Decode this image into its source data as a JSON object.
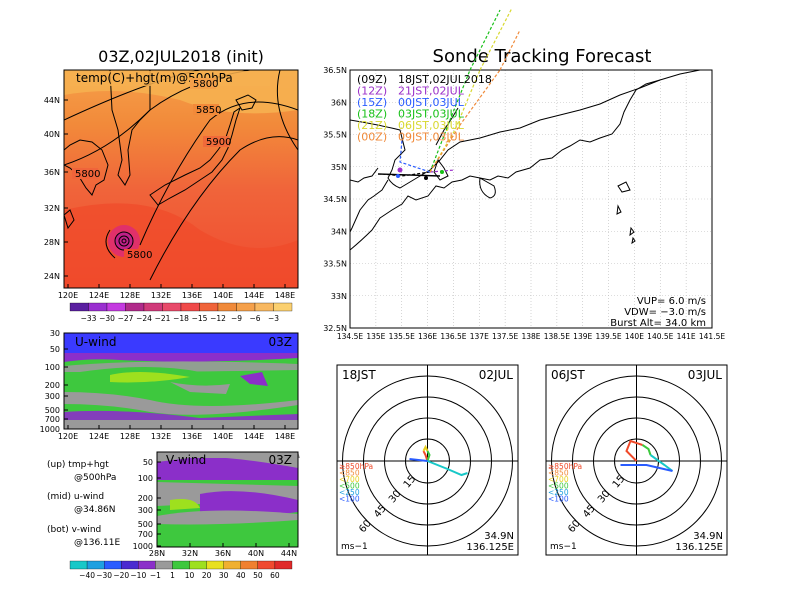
{
  "colors": {
    "blue_purple": "#3a3aff",
    "green": "#3ec83e",
    "purple": "#8b2fc9",
    "gray": "#9a9a9a",
    "orange_warm": "#f08a3a",
    "red_warm": "#f04a2a",
    "launch_09z": "#000000",
    "launch_12z": "#9b30c9",
    "launch_15z": "#2a5cff",
    "launch_18z": "#18c018",
    "launch_21z": "#d8d830",
    "launch_00z": "#f08a3a"
  },
  "map_panel": {
    "title": "03Z,02JUL2018 (init)",
    "field_label": "temp(C)+hgt(m)@500hPa",
    "contour_labels": [
      "5800",
      "5850",
      "5900",
      "5800",
      "5800"
    ],
    "lat_labels": [
      "44N",
      "40N",
      "36N",
      "32N",
      "28N",
      "24N"
    ],
    "lon_labels": [
      "120E",
      "124E",
      "128E",
      "132E",
      "136E",
      "140E",
      "144E",
      "148E"
    ],
    "colorbar_labels": [
      "−33",
      "−30",
      "−27",
      "−24",
      "−21",
      "−18",
      "−15",
      "−12",
      "−9",
      "−6",
      "−3"
    ]
  },
  "uwind_panel": {
    "label": "U-wind",
    "time": "03Z",
    "pressure_labels": [
      "30",
      "50",
      "100",
      "200",
      "300",
      "500",
      "700",
      "1000"
    ],
    "lon_labels": [
      "120E",
      "124E",
      "128E",
      "132E",
      "136E",
      "140E",
      "144E",
      "148E"
    ]
  },
  "vwind_panel": {
    "label": "V-wind",
    "time": "03Z",
    "pressure_labels": [
      "50",
      "100",
      "200",
      "300",
      "500",
      "700",
      "1000"
    ],
    "lat_labels": [
      "28N",
      "32N",
      "36N",
      "40N",
      "44N"
    ],
    "colorbar_labels": [
      "−40",
      "−30",
      "−20",
      "−10",
      "−1",
      "1",
      "10",
      "20",
      "30",
      "40",
      "50",
      "60"
    ]
  },
  "legend_notes": {
    "up_line1": "(up) tmp+hgt",
    "up_line2": "@500hPa",
    "mid_line1": "(mid) u-wind",
    "mid_line2": "@34.86N",
    "bot_line1": "(bot) v-wind",
    "bot_line2": "@136.11E"
  },
  "tracking_panel": {
    "title": "Sonde Tracking Forecast",
    "launches": [
      {
        "code": "(09Z)",
        "time": "18JST,02JUL2018"
      },
      {
        "code": "(12Z)",
        "time": "21JST,02JUL"
      },
      {
        "code": "(15Z)",
        "time": "00JST,03JUL"
      },
      {
        "code": "(18Z)",
        "time": "03JST,03JUL"
      },
      {
        "code": "(21Z)",
        "time": "06JST,03JUL"
      },
      {
        "code": "(00Z)",
        "time": "09JST,03JUL"
      }
    ],
    "lat_labels": [
      "36.5N",
      "36N",
      "35.5N",
      "35N",
      "34.5N",
      "34N",
      "33.5N",
      "33N",
      "32.5N"
    ],
    "lon_labels": [
      "134.5E",
      "135E",
      "135.5E",
      "136E",
      "136.5E",
      "137E",
      "137.5E",
      "138E",
      "138.5E",
      "139E",
      "139.5E",
      "140E",
      "140.5E",
      "141E",
      "141.5E"
    ],
    "vup": "VUP=  6.0 m/s",
    "vdw": "VDW= −3.0 m/s",
    "burst": "Burst Alt= 34.0 km"
  },
  "hodograph_left": {
    "time": "18JST",
    "date": "02JUL",
    "ring_labels": [
      "15",
      "30",
      "45",
      "60"
    ],
    "pressure_legend": [
      "≥850hPa",
      "<850",
      "<700",
      "<500",
      "<250",
      "<100"
    ],
    "units": "ms−1",
    "lat": "34.9N",
    "lon": "136.125E"
  },
  "hodograph_right": {
    "time": "06JST",
    "date": "03JUL",
    "ring_labels": [
      "15",
      "30",
      "45",
      "60"
    ],
    "pressure_legend": [
      "≥850hPa",
      "<850",
      "<700",
      "<500",
      "<250",
      "<100"
    ],
    "units": "ms−1",
    "lat": "34.9N",
    "lon": "136.125E"
  }
}
